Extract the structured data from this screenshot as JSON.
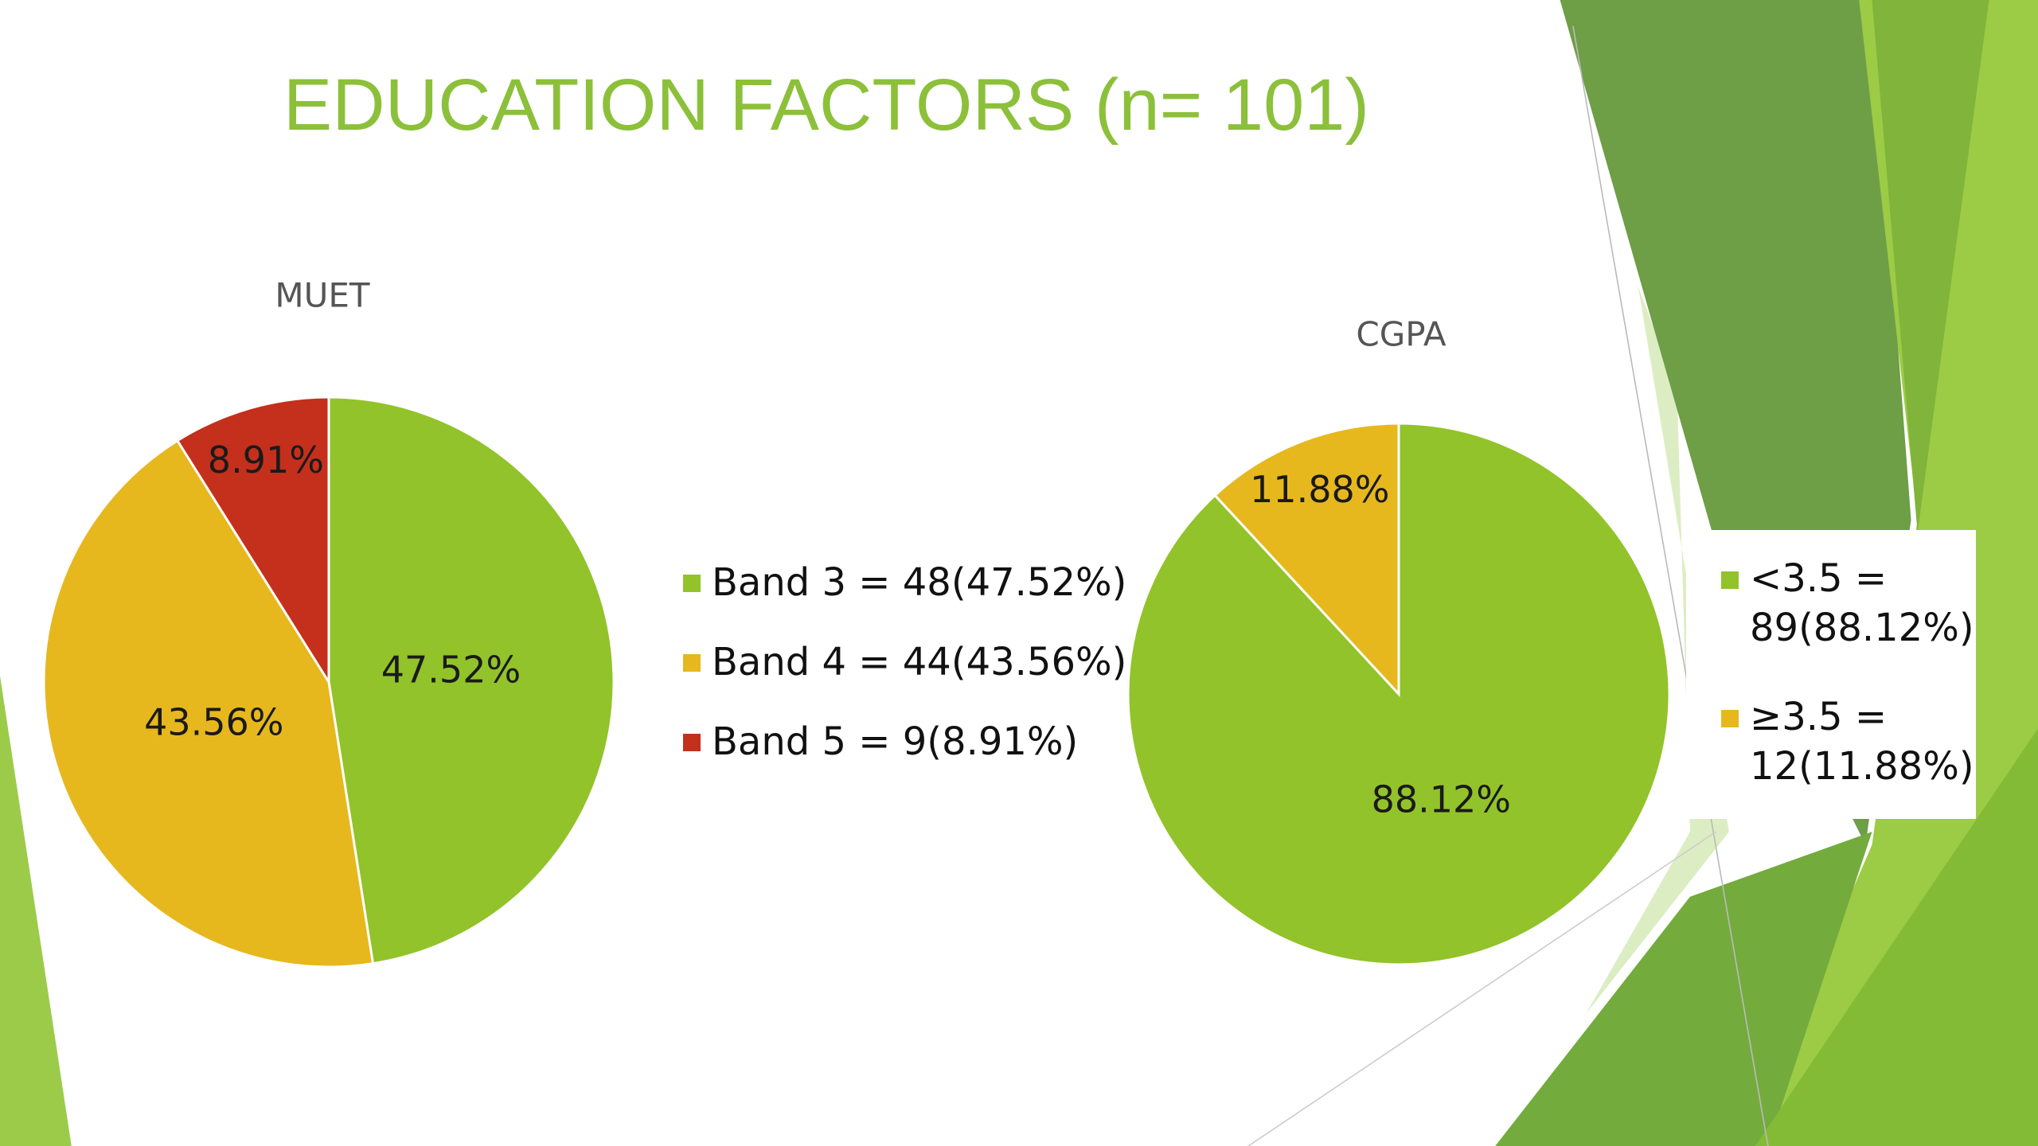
{
  "title": "EDUCATION FACTORS (n= 101)",
  "chart_data": [
    {
      "type": "pie",
      "title": "MUET",
      "categories": [
        "Band 3 = 48(47.52%)",
        "Band 4 = 44(43.56%)",
        "Band 5 = 9(8.91%)"
      ],
      "values": [
        47.52,
        43.56,
        8.91
      ],
      "value_labels": [
        "47.52%",
        "43.56%",
        "8.91%"
      ],
      "colors": [
        "#92c32a",
        "#e6b81e",
        "#c4301c"
      ],
      "legend": "right"
    },
    {
      "type": "pie",
      "title": "CGPA",
      "categories": [
        "<3.5 = 89(88.12%)",
        "≥3.5 = 12(11.88%)"
      ],
      "values": [
        88.12,
        11.88
      ],
      "value_labels": [
        "88.12%",
        "11.88%"
      ],
      "colors": [
        "#92c32a",
        "#e6b81e"
      ],
      "legend": "right"
    }
  ]
}
